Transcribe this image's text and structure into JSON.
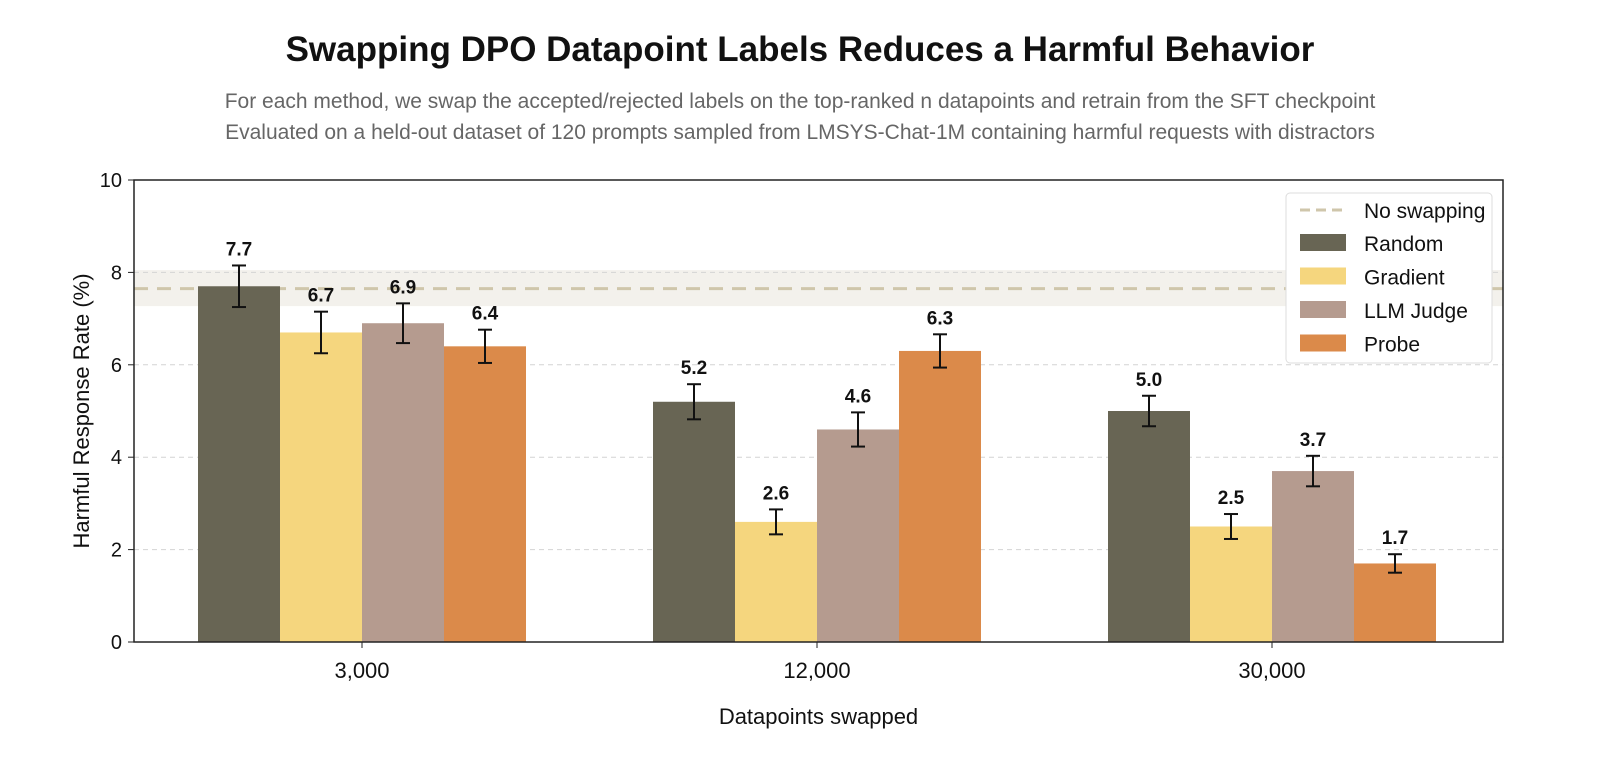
{
  "chart_data": {
    "type": "bar",
    "title": "Swapping DPO Datapoint Labels Reduces a Harmful Behavior",
    "subtitle": [
      "For each method, we swap the accepted/rejected labels on the top-ranked n datapoints and retrain from the SFT checkpoint",
      "Evaluated on a held-out dataset of 120 prompts sampled from LMSYS-Chat-1M containing harmful requests with distractors"
    ],
    "xlabel": "Datapoints swapped",
    "ylabel": "Harmful Response Rate (%)",
    "ylim": [
      0,
      10
    ],
    "yticks": [
      "0",
      "2",
      "4",
      "6",
      "8",
      "10"
    ],
    "grid": "horizontal dashed",
    "legend_position": "top-right",
    "categories": [
      "3,000",
      "12,000",
      "30,000"
    ],
    "baseline": {
      "name": "No swapping",
      "value": 7.65,
      "band": [
        7.27,
        8.05
      ],
      "color": "#cfc6ab"
    },
    "series": [
      {
        "name": "Random",
        "color": "#686554",
        "values": [
          7.7,
          5.2,
          5.0
        ],
        "errors": [
          0.45,
          0.38,
          0.33
        ],
        "labels": [
          "7.7",
          "5.2",
          "5.0"
        ]
      },
      {
        "name": "Gradient",
        "color": "#f5d67e",
        "values": [
          6.7,
          2.6,
          2.5
        ],
        "errors": [
          0.45,
          0.27,
          0.27
        ],
        "labels": [
          "6.7",
          "2.6",
          "2.5"
        ]
      },
      {
        "name": "LLM Judge",
        "color": "#b59b8f",
        "values": [
          6.9,
          4.6,
          3.7
        ],
        "errors": [
          0.43,
          0.37,
          0.33
        ],
        "labels": [
          "6.9",
          "4.6",
          "3.7"
        ]
      },
      {
        "name": "Probe",
        "color": "#db8a4a",
        "values": [
          6.4,
          6.3,
          1.7
        ],
        "errors": [
          0.36,
          0.36,
          0.2
        ],
        "labels": [
          "6.4",
          "6.3",
          "1.7"
        ]
      }
    ]
  }
}
